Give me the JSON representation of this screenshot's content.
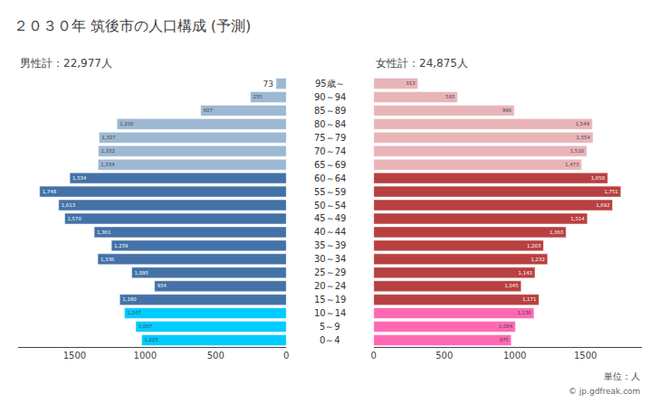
{
  "chart_data": {
    "type": "bar",
    "orientation": "horizontal",
    "title": "２０３０年 筑後市の人口構成 (予測)",
    "categories": [
      "95歳～",
      "90～94",
      "85～89",
      "80～84",
      "75～79",
      "70～74",
      "65～69",
      "60～64",
      "55～59",
      "50～54",
      "45～49",
      "40～44",
      "35～39",
      "30～34",
      "25～29",
      "20～24",
      "15～19",
      "10～14",
      "5～9",
      "0～4"
    ],
    "series": [
      {
        "name": "男性計：22,977人",
        "values": [
          73,
          255,
          607,
          1200,
          1327,
          1332,
          1334,
          1534,
          1748,
          1613,
          1570,
          1361,
          1239,
          1336,
          1095,
          934,
          1180,
          1147,
          1067,
          1025
        ],
        "value_labels": [
          "73",
          "255",
          "607",
          "1,200",
          "1,327",
          "1,332",
          "1,334",
          "1,534",
          "1,748",
          "1,613",
          "1,570",
          "1,361",
          "1,239",
          "1,336",
          "1,095",
          "934",
          "1,180",
          "1,147",
          "1,067",
          "1,025"
        ],
        "colors": [
          "#9db8d2",
          "#9db8d2",
          "#9db8d2",
          "#9db8d2",
          "#9db8d2",
          "#9db8d2",
          "#9db8d2",
          "#4472a8",
          "#4472a8",
          "#4472a8",
          "#4472a8",
          "#4472a8",
          "#4472a8",
          "#4472a8",
          "#4472a8",
          "#4472a8",
          "#4472a8",
          "#00ccff",
          "#00ccff",
          "#00ccff"
        ],
        "xlim": [
          1900,
          0
        ],
        "xticks": [
          0,
          500,
          1000,
          1500
        ]
      },
      {
        "name": "女性計：24,875人",
        "values": [
          313,
          593,
          996,
          1549,
          1554,
          1510,
          1473,
          1658,
          1751,
          1692,
          1514,
          1363,
          1203,
          1232,
          1143,
          1045,
          1171,
          1136,
          1004,
          975
        ],
        "value_labels": [
          "313",
          "593",
          "996",
          "1,549",
          "1,554",
          "1,510",
          "1,473",
          "1,658",
          "1,751",
          "1,692",
          "1,514",
          "1,363",
          "1,203",
          "1,232",
          "1,143",
          "1,045",
          "1,171",
          "1,136",
          "1,004",
          "975"
        ],
        "colors": [
          "#e8b4b8",
          "#e8b4b8",
          "#e8b4b8",
          "#e8b4b8",
          "#e8b4b8",
          "#e8b4b8",
          "#e8b4b8",
          "#b94040",
          "#b94040",
          "#b94040",
          "#b94040",
          "#b94040",
          "#b94040",
          "#b94040",
          "#b94040",
          "#b94040",
          "#b94040",
          "#ff69b4",
          "#ff69b4",
          "#ff69b4"
        ],
        "xlim": [
          0,
          1900
        ],
        "xticks": [
          0,
          500,
          1000,
          1500
        ]
      }
    ],
    "data_labels": true,
    "grid": false,
    "annotations": [
      "単位：人",
      "© jp.gdfreak.com"
    ]
  }
}
